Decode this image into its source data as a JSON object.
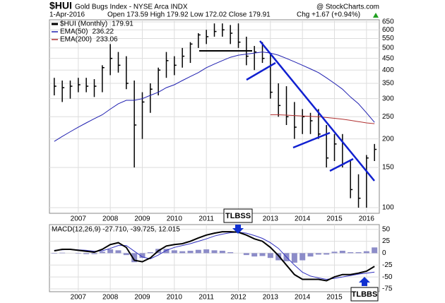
{
  "chart_data": [
    {
      "type": "stock",
      "title": "$HUI",
      "subtitle": "Gold Bugs Index - NYSE Arca  INDX",
      "source": "@ StockCharts.com",
      "date": "1-Apr-2016",
      "quote": "Open 173.59 High 179.92 Low 172.02 Close 179.91",
      "change": "Chg +1.67 (+0.94%)",
      "log_scale": true,
      "grid": true,
      "xlim": [
        2006.1,
        2016.4
      ],
      "xticks": [
        2007,
        2008,
        2009,
        2010,
        2011,
        2012,
        2013,
        2014,
        2015,
        2016
      ],
      "ylim": [
        94.5,
        664
      ],
      "yticks": [
        100,
        150,
        200,
        250,
        300,
        350,
        400,
        450,
        500,
        550,
        600,
        650
      ],
      "x": [
        2006.25,
        2006.5,
        2006.75,
        2007,
        2007.25,
        2007.5,
        2007.75,
        2008,
        2008.25,
        2008.5,
        2008.75,
        2009,
        2009.25,
        2009.5,
        2009.75,
        2010,
        2010.25,
        2010.5,
        2010.75,
        2011,
        2011.25,
        2011.5,
        2011.75,
        2012,
        2012.25,
        2012.5,
        2012.75,
        2013,
        2013.25,
        2013.5,
        2013.75,
        2014,
        2014.25,
        2014.5,
        2014.75,
        2015,
        2015.25,
        2015.5,
        2015.75,
        2016,
        2016.25
      ],
      "series": [
        {
          "name": "$HUI (Monthly)",
          "color": "#000000",
          "style": "hlc",
          "values": [
            340,
            335,
            340,
            345,
            340,
            340,
            410,
            450,
            420,
            350,
            230,
            290,
            330,
            400,
            440,
            420,
            460,
            520,
            570,
            560,
            590,
            600,
            580,
            530,
            460,
            480,
            450,
            320,
            280,
            250,
            225,
            250,
            240,
            210,
            165,
            190,
            155,
            120,
            110,
            165,
            179.91
          ],
          "high": [
            370,
            360,
            360,
            370,
            370,
            365,
            420,
            520,
            480,
            460,
            360,
            320,
            350,
            410,
            480,
            460,
            500,
            530,
            580,
            600,
            640,
            640,
            630,
            640,
            560,
            510,
            530,
            470,
            350,
            340,
            290,
            270,
            260,
            270,
            230,
            210,
            210,
            160,
            140,
            170,
            190
          ],
          "low": [
            310,
            290,
            300,
            320,
            320,
            305,
            320,
            380,
            390,
            330,
            150,
            200,
            260,
            310,
            370,
            380,
            410,
            430,
            500,
            520,
            560,
            560,
            520,
            500,
            420,
            400,
            430,
            300,
            250,
            230,
            200,
            210,
            210,
            200,
            150,
            160,
            150,
            110,
            100,
            100,
            160
          ]
        },
        {
          "name": "EMA(50)",
          "color": "#1f1fb0",
          "style": "line",
          "values": [
            195,
            205,
            215,
            225,
            235,
            245,
            255,
            270,
            285,
            295,
            295,
            300,
            310,
            320,
            335,
            345,
            360,
            375,
            390,
            410,
            425,
            440,
            455,
            465,
            470,
            475,
            480,
            475,
            465,
            450,
            435,
            420,
            405,
            390,
            370,
            350,
            330,
            305,
            285,
            260,
            236.22
          ]
        },
        {
          "name": "EMA(200)",
          "color": "#b03030",
          "style": "line",
          "values": [
            null,
            null,
            null,
            null,
            null,
            null,
            null,
            null,
            null,
            null,
            null,
            null,
            null,
            null,
            null,
            null,
            null,
            null,
            null,
            null,
            null,
            null,
            null,
            null,
            null,
            null,
            null,
            255,
            255,
            254,
            253,
            252,
            251,
            250,
            248,
            246,
            244,
            241,
            238,
            235,
            233.06
          ]
        }
      ]
    },
    {
      "type": "macd",
      "title": "MACD(12,26,9) -27.710, -39.725, 12.015",
      "grid": true,
      "annotations": [
        "TLBSS",
        "TLBBS"
      ],
      "xlim": [
        2006.1,
        2016.4
      ],
      "xticks": [
        2007,
        2008,
        2009,
        2010,
        2011,
        2012,
        2013,
        2014,
        2015,
        2016
      ],
      "ylim": [
        -81,
        60
      ],
      "yticks": [
        50,
        25,
        0,
        -25,
        -50,
        -75
      ],
      "x": [
        2006.25,
        2006.5,
        2006.75,
        2007,
        2007.25,
        2007.5,
        2007.75,
        2008,
        2008.25,
        2008.5,
        2008.75,
        2009,
        2009.25,
        2009.5,
        2009.75,
        2010,
        2010.25,
        2010.5,
        2010.75,
        2011,
        2011.25,
        2011.5,
        2011.75,
        2012,
        2012.25,
        2012.5,
        2012.75,
        2013,
        2013.25,
        2013.5,
        2013.75,
        2014,
        2014.25,
        2014.5,
        2014.75,
        2015,
        2015.25,
        2015.5,
        2015.75,
        2016,
        2016.25
      ],
      "series": [
        {
          "name": "Histogram",
          "color": "#8c8cc8",
          "style": "histogram",
          "values": [
            -1,
            1,
            0,
            -1,
            -2,
            -2,
            3,
            8,
            6,
            -4,
            -19,
            -10,
            2,
            9,
            9,
            6,
            4,
            5,
            7,
            8,
            6,
            5,
            2,
            0,
            -4,
            -7,
            -6,
            -10,
            -15,
            -17,
            -20,
            -15,
            -7,
            -3,
            -3,
            3,
            5,
            2,
            2,
            4,
            12.015
          ]
        },
        {
          "name": "Signal",
          "color": "#3030c0",
          "style": "line",
          "values": [
            6,
            7,
            8,
            7,
            6,
            4,
            5,
            10,
            16,
            16,
            4,
            -8,
            -12,
            -4,
            6,
            12,
            16,
            20,
            25,
            30,
            36,
            40,
            43,
            44,
            42,
            37,
            31,
            22,
            10,
            -8,
            -25,
            -40,
            -48,
            -52,
            -55,
            -53,
            -50,
            -47,
            -44,
            -42,
            -39.725
          ]
        },
        {
          "name": "MACD",
          "color": "#000000",
          "style": "line",
          "width": 2,
          "values": [
            5,
            8,
            8,
            6,
            4,
            2,
            8,
            18,
            22,
            12,
            -15,
            -18,
            -10,
            5,
            15,
            18,
            20,
            25,
            32,
            38,
            42,
            45,
            45,
            44,
            38,
            30,
            25,
            12,
            -5,
            -25,
            -45,
            -55,
            -55,
            -55,
            -58,
            -50,
            -45,
            -45,
            -42,
            -38,
            -27.71
          ]
        }
      ]
    }
  ]
}
